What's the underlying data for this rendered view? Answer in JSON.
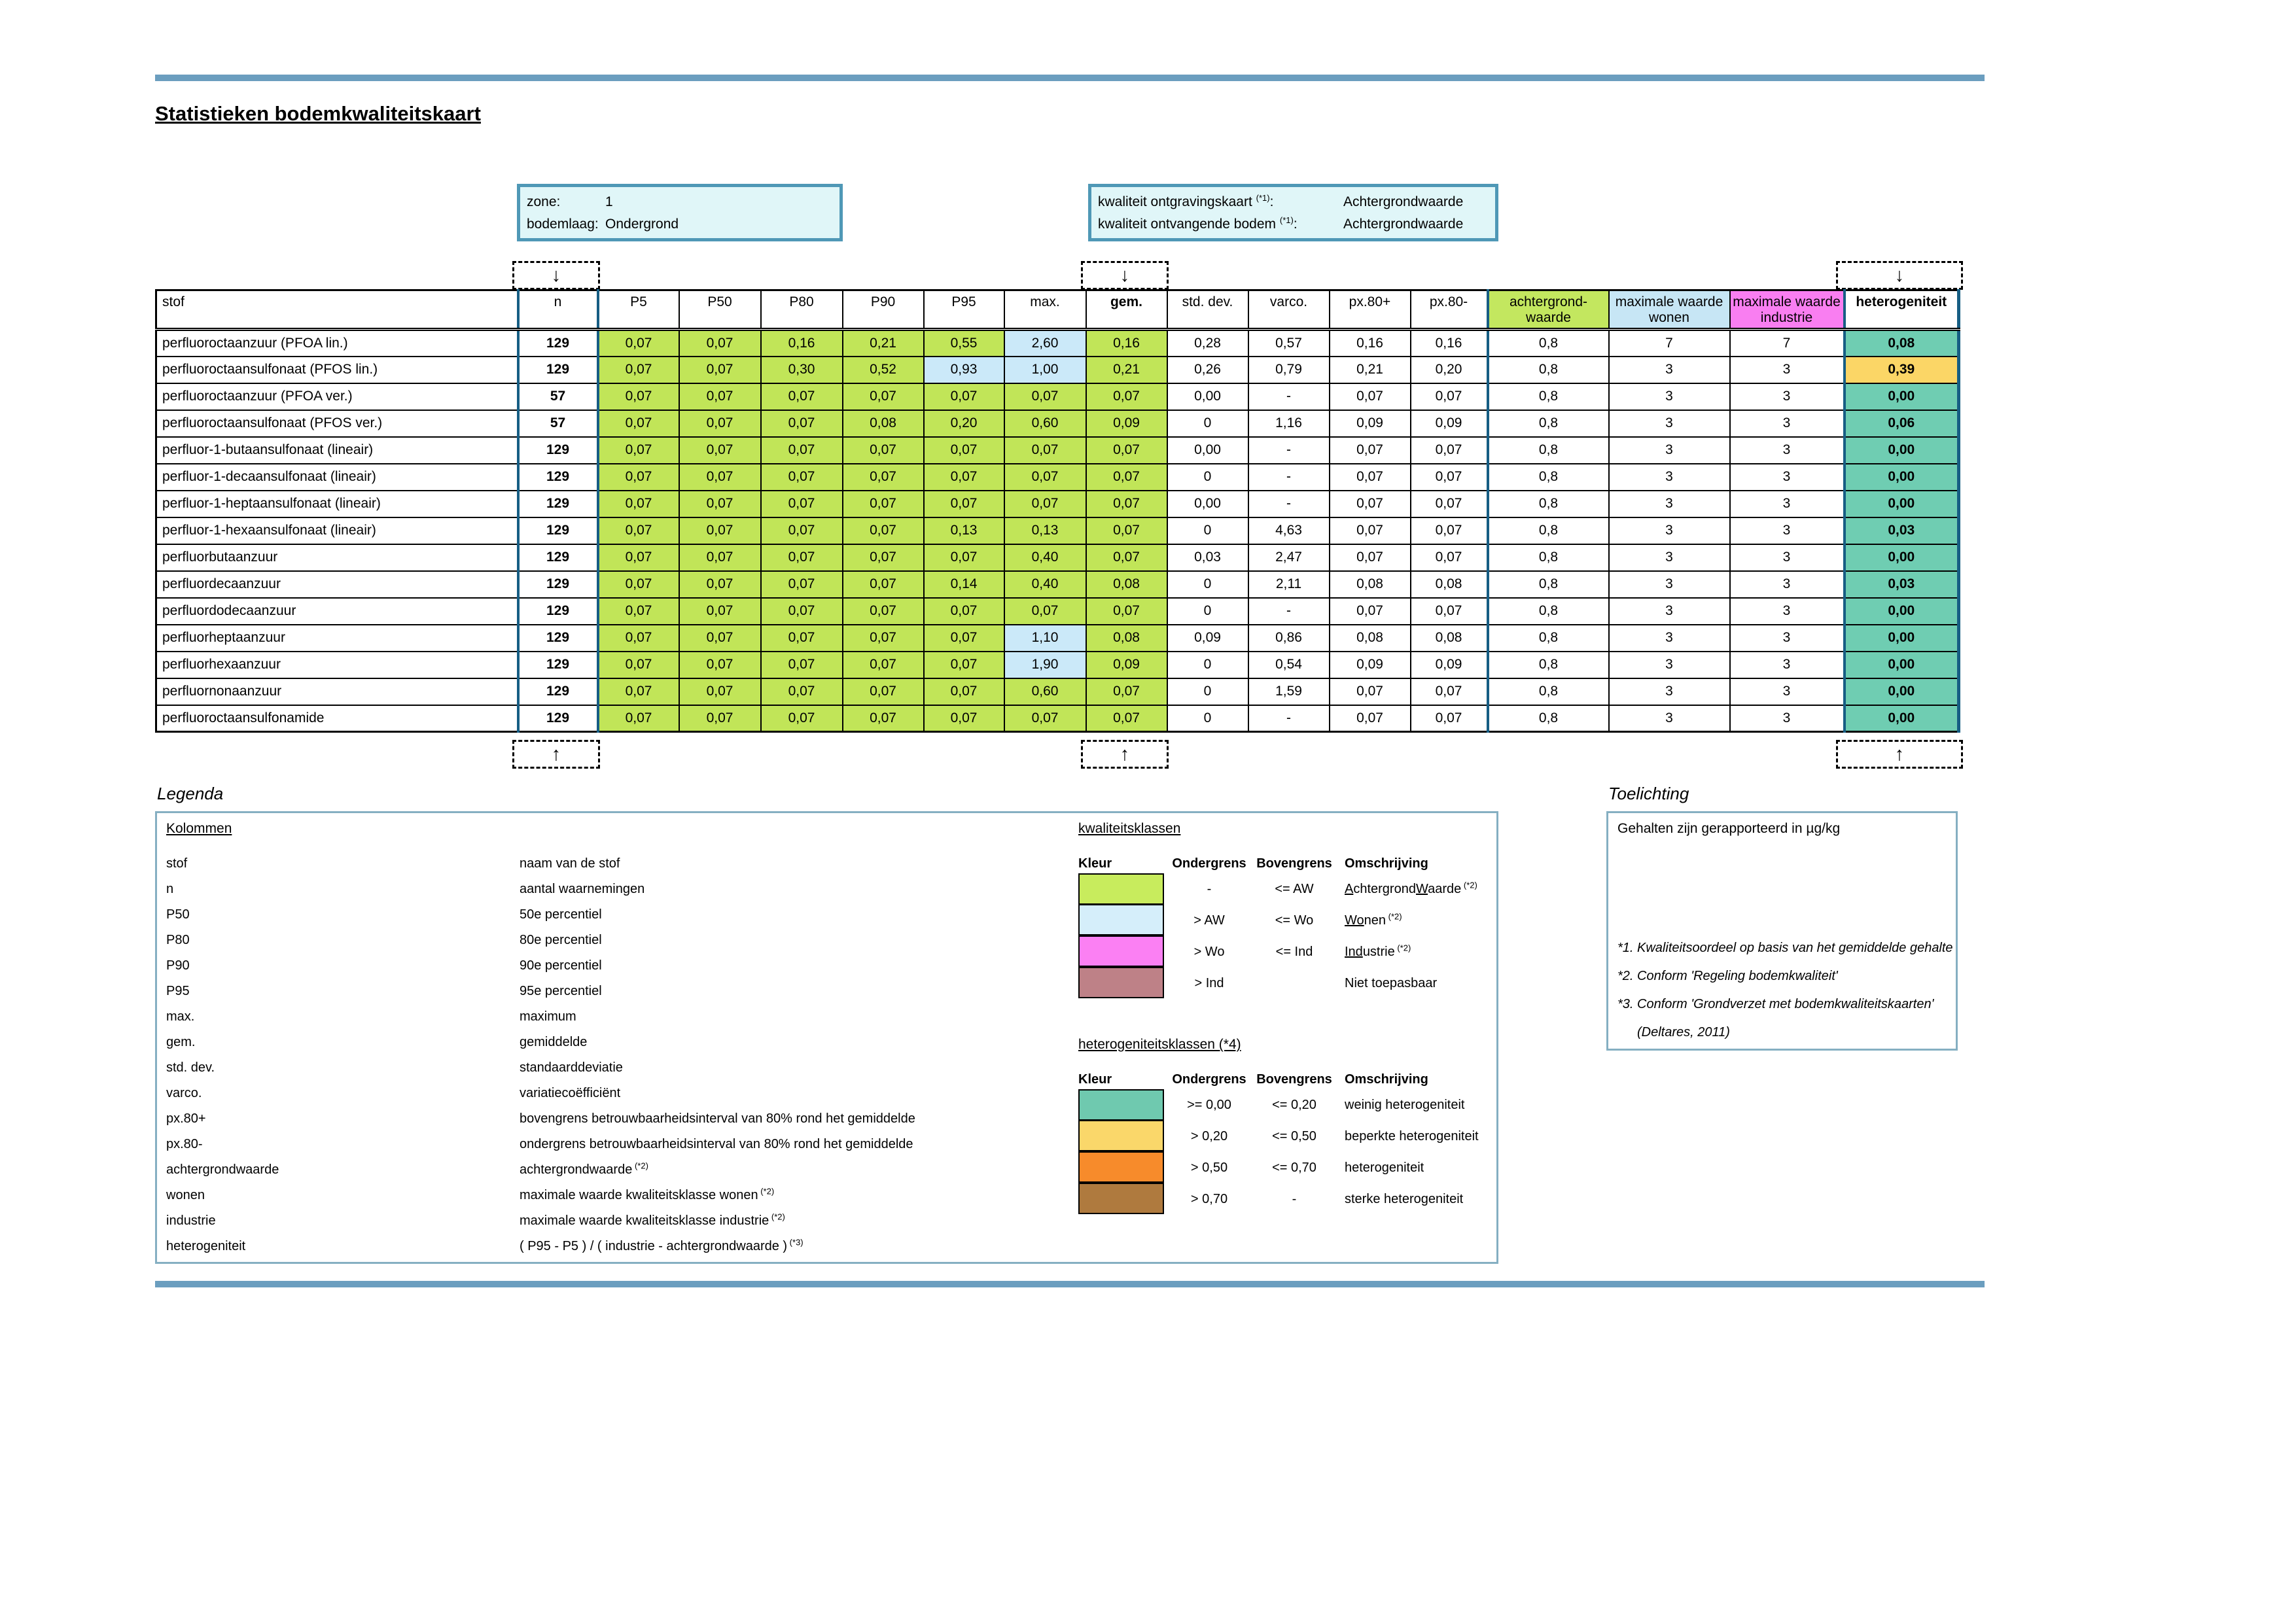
{
  "page": {
    "title": "Statistieken bodemkwaliteitskaart"
  },
  "icons": {
    "down_arrow": "↓",
    "up_arrow": "↑"
  },
  "info_left": {
    "rows": [
      {
        "label": "zone:",
        "value": "1"
      },
      {
        "label": "bodemlaag:",
        "value": "Ondergrond"
      }
    ]
  },
  "info_right": {
    "colon": ":",
    "rows": [
      {
        "label": "kwaliteit ontgravingskaart",
        "sup": "(*1)",
        "value": "Achtergrondwaarde"
      },
      {
        "label": "kwaliteit ontvangende bodem",
        "sup": "(*1)",
        "value": "Achtergrondwaarde"
      }
    ]
  },
  "table": {
    "headers": [
      {
        "label": "stof",
        "cls": "h-stof"
      },
      {
        "label": "n",
        "cls": "ncol"
      },
      {
        "label": "P5",
        "cls": ""
      },
      {
        "label": "P50",
        "cls": ""
      },
      {
        "label": "P80",
        "cls": ""
      },
      {
        "label": "P90",
        "cls": ""
      },
      {
        "label": "P95",
        "cls": ""
      },
      {
        "label": "max.",
        "cls": ""
      },
      {
        "label": "gem.",
        "cls": "bold"
      },
      {
        "label": "std. dev.",
        "cls": ""
      },
      {
        "label": "varco.",
        "cls": ""
      },
      {
        "label": "px.80+",
        "cls": ""
      },
      {
        "label": "px.80-",
        "cls": ""
      },
      {
        "label": "achtergrond-\nwaarde",
        "cls": "hg awcol"
      },
      {
        "label": "maximale waarde\nwonen",
        "cls": "hb"
      },
      {
        "label": "maximale waarde\nindustrie",
        "cls": "hm"
      },
      {
        "label": "heterogeniteit",
        "cls": "bold hetcol"
      }
    ],
    "rows": [
      {
        "stof": "perfluoroctaanzuur (PFOA lin.)",
        "n": "129",
        "p5": "0,07",
        "p50": "0,07",
        "p80": "0,16",
        "p90": "0,21",
        "p95": "0,55",
        "max": "2,60",
        "gem": "0,16",
        "std": "0,28",
        "varco": "0,57",
        "px80p": "0,16",
        "px80m": "0,16",
        "aw": "0,8",
        "wonen": "7",
        "industrie": "7",
        "het": "0,08",
        "blue": [
          "max"
        ],
        "het_class": "teal"
      },
      {
        "stof": "perfluoroctaansulfonaat (PFOS lin.)",
        "n": "129",
        "p5": "0,07",
        "p50": "0,07",
        "p80": "0,30",
        "p90": "0,52",
        "p95": "0,93",
        "max": "1,00",
        "gem": "0,21",
        "std": "0,26",
        "varco": "0,79",
        "px80p": "0,21",
        "px80m": "0,20",
        "aw": "0,8",
        "wonen": "3",
        "industrie": "3",
        "het": "0,39",
        "blue": [
          "p95",
          "max"
        ],
        "het_class": "yellow"
      },
      {
        "stof": "perfluoroctaanzuur (PFOA ver.)",
        "n": "57",
        "p5": "0,07",
        "p50": "0,07",
        "p80": "0,07",
        "p90": "0,07",
        "p95": "0,07",
        "max": "0,07",
        "gem": "0,07",
        "std": "0,00",
        "varco": "-",
        "px80p": "0,07",
        "px80m": "0,07",
        "aw": "0,8",
        "wonen": "3",
        "industrie": "3",
        "het": "0,00",
        "blue": [],
        "het_class": "teal"
      },
      {
        "stof": "perfluoroctaansulfonaat (PFOS ver.)",
        "n": "57",
        "p5": "0,07",
        "p50": "0,07",
        "p80": "0,07",
        "p90": "0,08",
        "p95": "0,20",
        "max": "0,60",
        "gem": "0,09",
        "std": "0",
        "varco": "1,16",
        "px80p": "0,09",
        "px80m": "0,09",
        "aw": "0,8",
        "wonen": "3",
        "industrie": "3",
        "het": "0,06",
        "blue": [],
        "het_class": "teal"
      },
      {
        "stof": "perfluor-1-butaansulfonaat (lineair)",
        "n": "129",
        "p5": "0,07",
        "p50": "0,07",
        "p80": "0,07",
        "p90": "0,07",
        "p95": "0,07",
        "max": "0,07",
        "gem": "0,07",
        "std": "0,00",
        "varco": "-",
        "px80p": "0,07",
        "px80m": "0,07",
        "aw": "0,8",
        "wonen": "3",
        "industrie": "3",
        "het": "0,00",
        "blue": [],
        "het_class": "teal"
      },
      {
        "stof": "perfluor-1-decaansulfonaat (lineair)",
        "n": "129",
        "p5": "0,07",
        "p50": "0,07",
        "p80": "0,07",
        "p90": "0,07",
        "p95": "0,07",
        "max": "0,07",
        "gem": "0,07",
        "std": "0",
        "varco": "-",
        "px80p": "0,07",
        "px80m": "0,07",
        "aw": "0,8",
        "wonen": "3",
        "industrie": "3",
        "het": "0,00",
        "blue": [],
        "het_class": "teal"
      },
      {
        "stof": "perfluor-1-heptaansulfonaat (lineair)",
        "n": "129",
        "p5": "0,07",
        "p50": "0,07",
        "p80": "0,07",
        "p90": "0,07",
        "p95": "0,07",
        "max": "0,07",
        "gem": "0,07",
        "std": "0,00",
        "varco": "-",
        "px80p": "0,07",
        "px80m": "0,07",
        "aw": "0,8",
        "wonen": "3",
        "industrie": "3",
        "het": "0,00",
        "blue": [],
        "het_class": "teal"
      },
      {
        "stof": "perfluor-1-hexaansulfonaat (lineair)",
        "n": "129",
        "p5": "0,07",
        "p50": "0,07",
        "p80": "0,07",
        "p90": "0,07",
        "p95": "0,13",
        "max": "0,13",
        "gem": "0,07",
        "std": "0",
        "varco": "4,63",
        "px80p": "0,07",
        "px80m": "0,07",
        "aw": "0,8",
        "wonen": "3",
        "industrie": "3",
        "het": "0,03",
        "blue": [],
        "het_class": "teal"
      },
      {
        "stof": "perfluorbutaanzuur",
        "n": "129",
        "p5": "0,07",
        "p50": "0,07",
        "p80": "0,07",
        "p90": "0,07",
        "p95": "0,07",
        "max": "0,40",
        "gem": "0,07",
        "std": "0,03",
        "varco": "2,47",
        "px80p": "0,07",
        "px80m": "0,07",
        "aw": "0,8",
        "wonen": "3",
        "industrie": "3",
        "het": "0,00",
        "blue": [],
        "het_class": "teal"
      },
      {
        "stof": "perfluordecaanzuur",
        "n": "129",
        "p5": "0,07",
        "p50": "0,07",
        "p80": "0,07",
        "p90": "0,07",
        "p95": "0,14",
        "max": "0,40",
        "gem": "0,08",
        "std": "0",
        "varco": "2,11",
        "px80p": "0,08",
        "px80m": "0,08",
        "aw": "0,8",
        "wonen": "3",
        "industrie": "3",
        "het": "0,03",
        "blue": [],
        "het_class": "teal"
      },
      {
        "stof": "perfluordodecaanzuur",
        "n": "129",
        "p5": "0,07",
        "p50": "0,07",
        "p80": "0,07",
        "p90": "0,07",
        "p95": "0,07",
        "max": "0,07",
        "gem": "0,07",
        "std": "0",
        "varco": "-",
        "px80p": "0,07",
        "px80m": "0,07",
        "aw": "0,8",
        "wonen": "3",
        "industrie": "3",
        "het": "0,00",
        "blue": [],
        "het_class": "teal"
      },
      {
        "stof": "perfluorheptaanzuur",
        "n": "129",
        "p5": "0,07",
        "p50": "0,07",
        "p80": "0,07",
        "p90": "0,07",
        "p95": "0,07",
        "max": "1,10",
        "gem": "0,08",
        "std": "0,09",
        "varco": "0,86",
        "px80p": "0,08",
        "px80m": "0,08",
        "aw": "0,8",
        "wonen": "3",
        "industrie": "3",
        "het": "0,00",
        "blue": [
          "max"
        ],
        "het_class": "teal"
      },
      {
        "stof": "perfluorhexaanzuur",
        "n": "129",
        "p5": "0,07",
        "p50": "0,07",
        "p80": "0,07",
        "p90": "0,07",
        "p95": "0,07",
        "max": "1,90",
        "gem": "0,09",
        "std": "0",
        "varco": "0,54",
        "px80p": "0,09",
        "px80m": "0,09",
        "aw": "0,8",
        "wonen": "3",
        "industrie": "3",
        "het": "0,00",
        "blue": [
          "max"
        ],
        "het_class": "teal"
      },
      {
        "stof": "perfluornonaanzuur",
        "n": "129",
        "p5": "0,07",
        "p50": "0,07",
        "p80": "0,07",
        "p90": "0,07",
        "p95": "0,07",
        "max": "0,60",
        "gem": "0,07",
        "std": "0",
        "varco": "1,59",
        "px80p": "0,07",
        "px80m": "0,07",
        "aw": "0,8",
        "wonen": "3",
        "industrie": "3",
        "het": "0,00",
        "blue": [],
        "het_class": "teal"
      },
      {
        "stof": "perfluoroctaansulfonamide",
        "n": "129",
        "p5": "0,07",
        "p50": "0,07",
        "p80": "0,07",
        "p90": "0,07",
        "p95": "0,07",
        "max": "0,07",
        "gem": "0,07",
        "std": "0",
        "varco": "-",
        "px80p": "0,07",
        "px80m": "0,07",
        "aw": "0,8",
        "wonen": "3",
        "industrie": "3",
        "het": "0,00",
        "blue": [],
        "het_class": "teal"
      }
    ]
  },
  "legend": {
    "heading": "Legenda",
    "kolommen_title": "Kolommen",
    "rows": [
      {
        "term": "stof",
        "desc": "naam van de stof"
      },
      {
        "term": "n",
        "desc": "aantal waarnemingen"
      },
      {
        "term": "P50",
        "desc": "50e percentiel"
      },
      {
        "term": "P80",
        "desc": "80e percentiel"
      },
      {
        "term": "P90",
        "desc": "90e percentiel"
      },
      {
        "term": "P95",
        "desc": "95e percentiel"
      },
      {
        "term": "max.",
        "desc": "maximum"
      },
      {
        "term": "gem.",
        "desc": "gemiddelde"
      },
      {
        "term": "std. dev.",
        "desc": "standaarddeviatie"
      },
      {
        "term": "varco.",
        "desc": "variatiecoëfficiënt"
      },
      {
        "term": "px.80+",
        "desc": "bovengrens betrouwbaarheidsinterval van 80% rond het gemiddelde"
      },
      {
        "term": "px.80-",
        "desc": "ondergrens betrouwbaarheidsinterval van 80% rond het gemiddelde"
      },
      {
        "term": "achtergrondwaarde",
        "desc": "achtergrondwaarde",
        "sup": "(*2)"
      },
      {
        "term": "wonen",
        "desc": "maximale waarde kwaliteitsklasse wonen",
        "sup": "(*2)"
      },
      {
        "term": "industrie",
        "desc": "maximale waarde kwaliteitsklasse industrie",
        "sup": "(*2)"
      },
      {
        "term": "heterogeniteit",
        "desc": "( P95 - P5 ) / ( industrie - achtergrondwaarde )",
        "sup": "(*3)"
      }
    ]
  },
  "quality_classes": {
    "title": "kwaliteitsklassen",
    "columns": [
      "Kleur",
      "Ondergrens",
      "Bovengrens",
      "Omschrijving"
    ],
    "rows": [
      {
        "color": "#C8EC5D",
        "ondergrens": "-",
        "bovengrens": "<= AW",
        "sup": "(*2)",
        "segments": [
          {
            "u": 1,
            "t": "A"
          },
          {
            "t": "chtergrond"
          },
          {
            "u": 1,
            "t": "W"
          },
          {
            "t": "aarde"
          }
        ]
      },
      {
        "color": "#D5EEFA",
        "ondergrens": "> AW",
        "bovengrens": "<= Wo",
        "sup": "(*2)",
        "segments": [
          {
            "u": 1,
            "t": "Wo"
          },
          {
            "t": "nen"
          }
        ]
      },
      {
        "color": "#FB80F3",
        "ondergrens": "> Wo",
        "bovengrens": "<= Ind",
        "sup": "(*2)",
        "segments": [
          {
            "u": 1,
            "t": "Ind"
          },
          {
            "t": "ustrie"
          }
        ]
      },
      {
        "color": "#BE8187",
        "ondergrens": "> Ind",
        "bovengrens": "",
        "sup": "",
        "segments": [
          {
            "t": "Niet toepasbaar"
          }
        ]
      }
    ]
  },
  "hetero_classes": {
    "title": "heterogeniteitsklassen (*4)",
    "columns": [
      "Kleur",
      "Ondergrens",
      "Bovengrens",
      "Omschrijving"
    ],
    "rows": [
      {
        "color": "#6FC9AF",
        "ondergrens": ">= 0,00",
        "bovengrens": "<= 0,20",
        "sup": "",
        "segments": [
          {
            "t": "weinig heterogeniteit"
          }
        ]
      },
      {
        "color": "#FAD76A",
        "ondergrens": "> 0,20",
        "bovengrens": "<= 0,50",
        "sup": "",
        "segments": [
          {
            "t": "beperkte heterogeniteit"
          }
        ]
      },
      {
        "color": "#F78B2B",
        "ondergrens": "> 0,50",
        "bovengrens": "<= 0,70",
        "sup": "",
        "segments": [
          {
            "t": "heterogeniteit"
          }
        ]
      },
      {
        "color": "#AF7A3E",
        "ondergrens": "> 0,70",
        "bovengrens": "-",
        "sup": "",
        "segments": [
          {
            "t": "sterke heterogeniteit"
          }
        ]
      }
    ]
  },
  "toelichting": {
    "heading": "Toelichting",
    "line1": "Gehalten zijn gerapporteerd in µg/kg",
    "notes": [
      {
        "text": "*1. Kwaliteitsoordeel op basis van het gemiddelde gehalte",
        "indent": false
      },
      {
        "text": "*2. Conform 'Regeling bodemkwaliteit'",
        "indent": false
      },
      {
        "text": "*3. Conform 'Grondverzet met bodemkwaliteitskaarten'",
        "indent": false
      },
      {
        "text": "(Deltares, 2011)",
        "indent": true
      }
    ]
  }
}
